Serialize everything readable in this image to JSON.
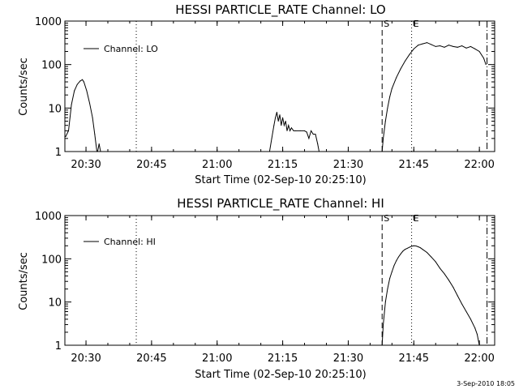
{
  "timestamp": "3-Sep-2010 18:05",
  "chart_data": [
    {
      "type": "line",
      "title": "HESSI PARTICLE_RATE Channel: LO",
      "xlabel": "Start Time (02-Sep-10 20:25:10)",
      "ylabel": "Counts/sec",
      "y_scale": "log",
      "ylim": [
        1,
        1000
      ],
      "xlim": [
        "20:25:10",
        "22:03:30"
      ],
      "x_ticks": [
        "20:30",
        "20:45",
        "21:00",
        "21:15",
        "21:30",
        "21:45",
        "22:00"
      ],
      "y_ticks": [
        "1",
        "10",
        "100",
        "1000"
      ],
      "legend_position": "top-left",
      "series": [
        {
          "name": "Channel: LO",
          "segments": [
            {
              "x": [
                "20:25:20",
                "20:26:00",
                "20:26:40",
                "20:27:20",
                "20:28:00",
                "20:28:40",
                "20:29:10",
                "20:29:30",
                "20:30:10",
                "20:30:50",
                "20:31:30",
                "20:32:00",
                "20:32:30"
              ],
              "y": [
                2.2,
                3.0,
                12,
                25,
                35,
                42,
                45,
                40,
                25,
                13,
                6,
                2.5,
                1
              ]
            },
            {
              "x": [
                "20:32:40",
                "20:33:00",
                "20:33:20"
              ],
              "y": [
                1.0,
                1.5,
                1.0
              ]
            },
            {
              "x": [
                "21:12:00",
                "21:12:30",
                "21:13:00",
                "21:13:20",
                "21:13:40",
                "21:14:00",
                "21:14:20",
                "21:14:40",
                "21:15:00",
                "21:15:20",
                "21:15:40",
                "21:16:00",
                "21:16:20",
                "21:16:40",
                "21:17:00",
                "21:17:30",
                "21:18:00",
                "21:19:00",
                "21:20:00",
                "21:20:30",
                "21:21:00",
                "21:21:30",
                "21:22:00",
                "21:22:30",
                "21:23:00",
                "21:23:20"
              ],
              "y": [
                1,
                2,
                4,
                6,
                8,
                5,
                7,
                4,
                6,
                4,
                5,
                3,
                4,
                3,
                3.5,
                3,
                3,
                3,
                3,
                2.8,
                2,
                3,
                2.5,
                2.5,
                1.5,
                1
              ]
            },
            {
              "x": [
                "21:37:45",
                "21:38:00",
                "21:38:30",
                "21:39:00",
                "21:39:30",
                "21:40:00",
                "21:41:00",
                "21:42:00",
                "21:43:00",
                "21:44:00",
                "21:45:00",
                "21:46:00",
                "21:47:00",
                "21:48:00",
                "21:49:00",
                "21:50:00",
                "21:51:00",
                "21:52:00",
                "21:53:00",
                "21:54:00",
                "21:55:00",
                "21:56:00",
                "21:57:00",
                "21:58:00",
                "21:59:00",
                "22:00:00",
                "22:01:00",
                "22:01:30"
              ],
              "y": [
                1,
                2,
                5,
                10,
                18,
                28,
                50,
                80,
                120,
                170,
                230,
                280,
                300,
                320,
                290,
                260,
                270,
                250,
                280,
                260,
                250,
                270,
                240,
                260,
                230,
                200,
                140,
                100
              ]
            }
          ]
        }
      ],
      "markers": [
        {
          "label": "",
          "time": "20:41:30",
          "style": "dotted"
        },
        {
          "label": "S",
          "time": "21:37:45",
          "style": "dashed"
        },
        {
          "label": "E",
          "time": "21:44:30",
          "style": "dotted"
        },
        {
          "label": "",
          "time": "22:01:45",
          "style": "dashdot"
        }
      ]
    },
    {
      "type": "line",
      "title": "HESSI PARTICLE_RATE Channel: HI",
      "xlabel": "Start Time (02-Sep-10 20:25:10)",
      "ylabel": "Counts/sec",
      "y_scale": "log",
      "ylim": [
        1,
        1000
      ],
      "xlim": [
        "20:25:10",
        "22:03:30"
      ],
      "x_ticks": [
        "20:30",
        "20:45",
        "21:00",
        "21:15",
        "21:30",
        "21:45",
        "22:00"
      ],
      "y_ticks": [
        "1",
        "10",
        "100",
        "1000"
      ],
      "legend_position": "top-left",
      "series": [
        {
          "name": "Channel: HI",
          "segments": [
            {
              "x": [
                "21:37:45",
                "21:38:00",
                "21:38:30",
                "21:39:00",
                "21:39:30",
                "21:40:00",
                "21:40:30",
                "21:41:00",
                "21:41:30",
                "21:42:00",
                "21:42:30",
                "21:43:00",
                "21:43:30",
                "21:44:00",
                "21:44:30",
                "21:45:00",
                "21:45:30",
                "21:46:00",
                "21:46:30",
                "21:47:00",
                "21:48:00",
                "21:49:00",
                "21:50:00",
                "21:51:00",
                "21:52:00",
                "21:53:00",
                "21:54:00",
                "21:55:00",
                "21:56:00",
                "21:57:00",
                "21:58:00",
                "21:59:00",
                "21:59:30",
                "22:00:00"
              ],
              "y": [
                1,
                3,
                10,
                20,
                35,
                50,
                70,
                90,
                110,
                130,
                150,
                165,
                175,
                185,
                195,
                200,
                198,
                190,
                180,
                165,
                140,
                110,
                85,
                60,
                45,
                32,
                22,
                14,
                9,
                6,
                4,
                2.5,
                1.8,
                1
              ]
            }
          ]
        }
      ],
      "markers": [
        {
          "label": "",
          "time": "20:41:30",
          "style": "dotted"
        },
        {
          "label": "S",
          "time": "21:37:45",
          "style": "dashed"
        },
        {
          "label": "E",
          "time": "21:44:30",
          "style": "dotted"
        },
        {
          "label": "",
          "time": "22:01:45",
          "style": "dashdot"
        }
      ]
    }
  ]
}
